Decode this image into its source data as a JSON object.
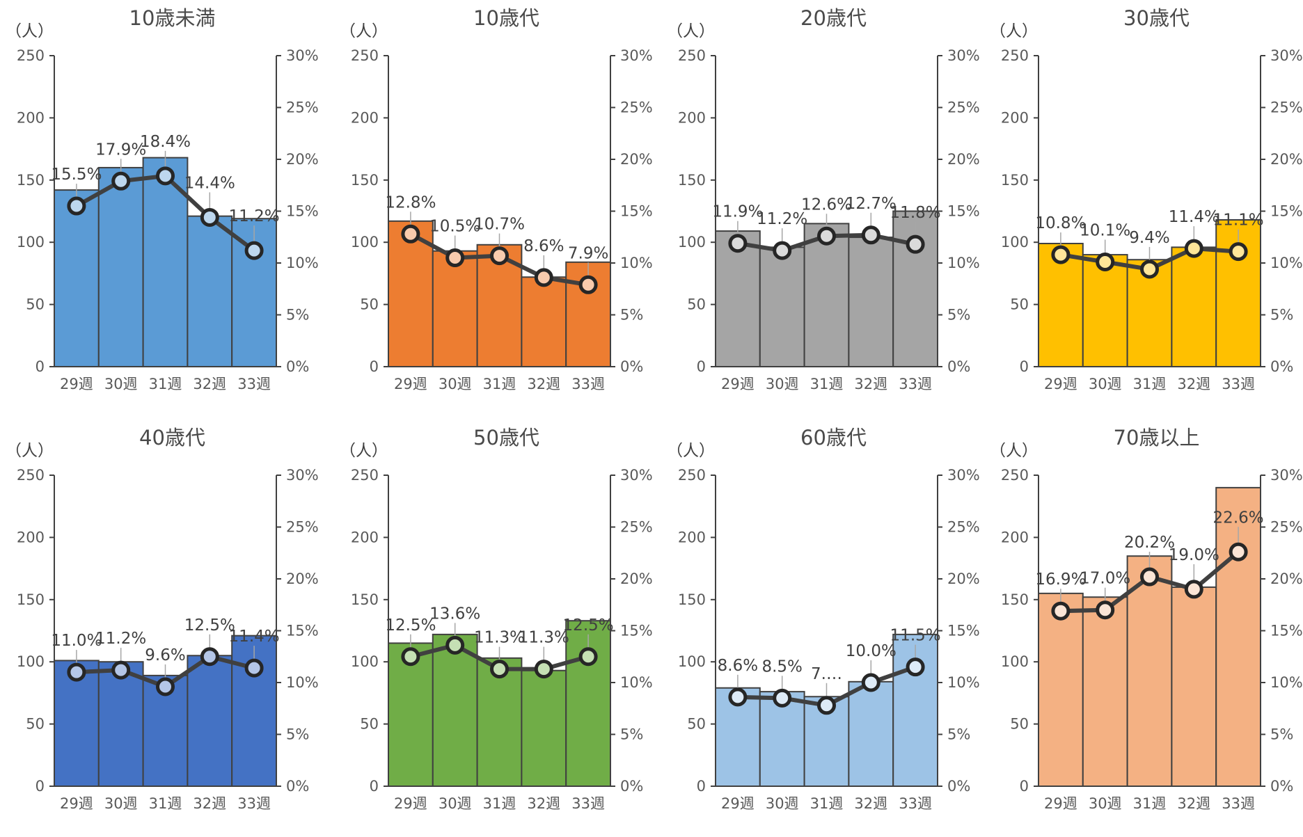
{
  "chart_data": [
    {
      "type": "bar+line",
      "title": "10歳未満",
      "left_unit": "（人）",
      "left_ticks": [
        "0",
        "50",
        "100",
        "150",
        "200",
        "250"
      ],
      "right_ticks": [
        "0%",
        "5%",
        "10%",
        "15%",
        "20%",
        "25%",
        "30%"
      ],
      "categories": [
        "29週",
        "30週",
        "31週",
        "32週",
        "33週"
      ],
      "ylim": [
        0,
        250
      ],
      "y2lim": [
        0,
        0.3
      ],
      "bar_values": [
        142,
        160,
        168,
        121,
        119
      ],
      "line_values": [
        0.155,
        0.179,
        0.184,
        0.144,
        0.112
      ],
      "labels": [
        "15.5%",
        "17.9%",
        "18.4%",
        "14.4%",
        "11.2%"
      ],
      "bar_color": "#5b9bd5",
      "marker_color": "#bdd7ee"
    },
    {
      "type": "bar+line",
      "title": "10歳代",
      "left_unit": "（人）",
      "left_ticks": [
        "0",
        "50",
        "100",
        "150",
        "200",
        "250"
      ],
      "right_ticks": [
        "0%",
        "5%",
        "10%",
        "15%",
        "20%",
        "25%",
        "30%"
      ],
      "categories": [
        "29週",
        "30週",
        "31週",
        "32週",
        "33週"
      ],
      "ylim": [
        0,
        250
      ],
      "y2lim": [
        0,
        0.3
      ],
      "bar_values": [
        117,
        93,
        98,
        72,
        84
      ],
      "line_values": [
        0.128,
        0.105,
        0.107,
        0.086,
        0.079
      ],
      "labels": [
        "12.8%",
        "10.5%",
        "10.7%",
        "8.6%",
        "7.9%"
      ],
      "bar_color": "#ed7d31",
      "marker_color": "#f8cbad"
    },
    {
      "type": "bar+line",
      "title": "20歳代",
      "left_unit": "（人）",
      "left_ticks": [
        "0",
        "50",
        "100",
        "150",
        "200",
        "250"
      ],
      "right_ticks": [
        "0%",
        "5%",
        "10%",
        "15%",
        "20%",
        "25%",
        "30%"
      ],
      "categories": [
        "29週",
        "30週",
        "31週",
        "32週",
        "33週"
      ],
      "ylim": [
        0,
        250
      ],
      "y2lim": [
        0,
        0.3
      ],
      "bar_values": [
        109,
        96,
        115,
        104,
        125
      ],
      "line_values": [
        0.119,
        0.112,
        0.126,
        0.127,
        0.118
      ],
      "labels": [
        "11.9%",
        "11.2%",
        "12.6%",
        "12.7%",
        "11.8%"
      ],
      "bar_color": "#a5a5a5",
      "marker_color": "#dbdbdb"
    },
    {
      "type": "bar+line",
      "title": "30歳代",
      "left_unit": "（人）",
      "left_ticks": [
        "0",
        "50",
        "100",
        "150",
        "200",
        "250"
      ],
      "right_ticks": [
        "0%",
        "5%",
        "10%",
        "15%",
        "20%",
        "25%",
        "30%"
      ],
      "categories": [
        "29週",
        "30週",
        "31週",
        "32週",
        "33週"
      ],
      "ylim": [
        0,
        250
      ],
      "y2lim": [
        0,
        0.3
      ],
      "bar_values": [
        99,
        90,
        86,
        96,
        118
      ],
      "line_values": [
        0.108,
        0.101,
        0.094,
        0.114,
        0.111
      ],
      "labels": [
        "10.8%",
        "10.1%",
        "9.4%",
        "11.4%",
        "11.1%"
      ],
      "bar_color": "#ffc000",
      "marker_color": "#ffe699"
    },
    {
      "type": "bar+line",
      "title": "40歳代",
      "left_unit": "（人）",
      "left_ticks": [
        "0",
        "50",
        "100",
        "150",
        "200",
        "250"
      ],
      "right_ticks": [
        "0%",
        "5%",
        "10%",
        "15%",
        "20%",
        "25%",
        "30%"
      ],
      "categories": [
        "29週",
        "30週",
        "31週",
        "32週",
        "33週"
      ],
      "ylim": [
        0,
        250
      ],
      "y2lim": [
        0,
        0.3
      ],
      "bar_values": [
        101,
        100,
        89,
        105,
        121
      ],
      "line_values": [
        0.11,
        0.112,
        0.096,
        0.125,
        0.114
      ],
      "labels": [
        "11.0%",
        "11.2%",
        "9.6%",
        "12.5%",
        "11.4%"
      ],
      "bar_color": "#4472c4",
      "marker_color": "#b4c6e7"
    },
    {
      "type": "bar+line",
      "title": "50歳代",
      "left_unit": "（人）",
      "left_ticks": [
        "0",
        "50",
        "100",
        "150",
        "200",
        "250"
      ],
      "right_ticks": [
        "0%",
        "5%",
        "10%",
        "15%",
        "20%",
        "25%",
        "30%"
      ],
      "categories": [
        "29週",
        "30週",
        "31週",
        "32週",
        "33週"
      ],
      "ylim": [
        0,
        250
      ],
      "y2lim": [
        0,
        0.3
      ],
      "bar_values": [
        115,
        122,
        103,
        93,
        133
      ],
      "line_values": [
        0.125,
        0.136,
        0.113,
        0.113,
        0.125
      ],
      "labels": [
        "12.5%",
        "13.6%",
        "11.3%",
        "11.3%",
        "12.5%"
      ],
      "bar_color": "#70ad47",
      "marker_color": "#c5e0b4"
    },
    {
      "type": "bar+line",
      "title": "60歳代",
      "left_unit": "（人）",
      "left_ticks": [
        "0",
        "50",
        "100",
        "150",
        "200",
        "250"
      ],
      "right_ticks": [
        "0%",
        "5%",
        "10%",
        "15%",
        "20%",
        "25%",
        "30%"
      ],
      "categories": [
        "29週",
        "30週",
        "31週",
        "32週",
        "33週"
      ],
      "ylim": [
        0,
        250
      ],
      "y2lim": [
        0,
        0.3
      ],
      "bar_values": [
        79,
        76,
        72,
        84,
        122
      ],
      "line_values": [
        0.086,
        0.085,
        0.078,
        0.1,
        0.115
      ],
      "labels": [
        "8.6%",
        "8.5%",
        "7.…",
        "10.0%",
        "11.5%"
      ],
      "bar_color": "#9dc3e6",
      "marker_color": "#deebf7"
    },
    {
      "type": "bar+line",
      "title": "70歳以上",
      "left_unit": "（人）",
      "left_ticks": [
        "0",
        "50",
        "100",
        "150",
        "200",
        "250"
      ],
      "right_ticks": [
        "0%",
        "5%",
        "10%",
        "15%",
        "20%",
        "25%",
        "30%"
      ],
      "categories": [
        "29週",
        "30週",
        "31週",
        "32週",
        "33週"
      ],
      "ylim": [
        0,
        250
      ],
      "y2lim": [
        0,
        0.3
      ],
      "bar_values": [
        155,
        152,
        185,
        160,
        240
      ],
      "line_values": [
        0.169,
        0.17,
        0.202,
        0.19,
        0.226
      ],
      "labels": [
        "16.9%",
        "17.0%",
        "20.2%",
        "19.0%",
        "22.6%"
      ],
      "bar_color": "#f4b183",
      "marker_color": "#fbe5d6"
    }
  ]
}
